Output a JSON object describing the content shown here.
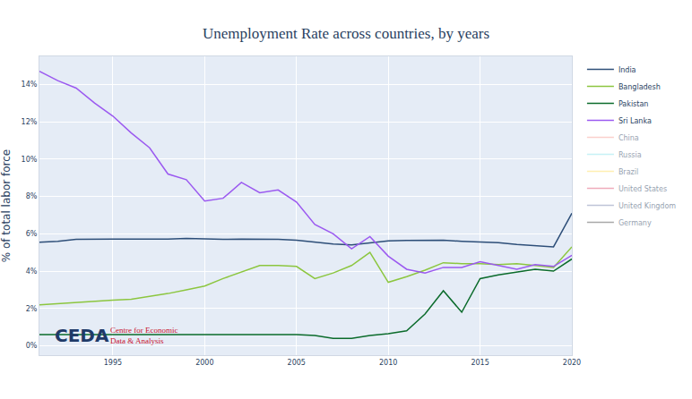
{
  "chart_data": {
    "type": "line",
    "title": "Unemployment Rate across countries, by years",
    "y_label": "% of total labor force",
    "x": [
      1991,
      1992,
      1993,
      1994,
      1995,
      1996,
      1997,
      1998,
      1999,
      2000,
      2001,
      2002,
      2003,
      2004,
      2005,
      2006,
      2007,
      2008,
      2009,
      2010,
      2011,
      2012,
      2013,
      2014,
      2015,
      2016,
      2017,
      2018,
      2019,
      2020
    ],
    "series": [
      {
        "name": "India",
        "color": "#2d4e78",
        "values": [
          5.55,
          5.6,
          5.7,
          5.72,
          5.72,
          5.72,
          5.72,
          5.71,
          5.75,
          5.73,
          5.7,
          5.72,
          5.72,
          5.7,
          5.65,
          5.55,
          5.45,
          5.4,
          5.5,
          5.62,
          5.64,
          5.64,
          5.65,
          5.6,
          5.57,
          5.52,
          5.43,
          5.38,
          5.3,
          7.1
        ]
      },
      {
        "name": "Bangladesh",
        "color": "#8cc63f",
        "values": [
          2.2,
          2.27,
          2.33,
          2.4,
          2.45,
          2.5,
          2.65,
          2.8,
          3.0,
          3.2,
          3.6,
          3.95,
          4.3,
          4.3,
          4.25,
          3.6,
          3.9,
          4.3,
          5.0,
          3.4,
          3.7,
          4.05,
          4.45,
          4.4,
          4.4,
          4.35,
          4.4,
          4.3,
          4.2,
          5.3
        ]
      },
      {
        "name": "Pakistan",
        "color": "#0b6b2b",
        "values": [
          0.6,
          0.6,
          0.6,
          0.6,
          0.6,
          0.6,
          0.6,
          0.6,
          0.6,
          0.6,
          0.6,
          0.6,
          0.6,
          0.6,
          0.6,
          0.55,
          0.4,
          0.4,
          0.55,
          0.65,
          0.8,
          1.7,
          2.95,
          1.8,
          3.6,
          3.8,
          3.95,
          4.1,
          4.0,
          4.65
        ]
      },
      {
        "name": "Sri Lanka",
        "color": "#9b59f0",
        "values": [
          14.7,
          14.2,
          13.8,
          13.0,
          12.3,
          11.4,
          10.6,
          9.2,
          8.9,
          7.75,
          7.9,
          8.75,
          8.2,
          8.35,
          7.7,
          6.5,
          6.0,
          5.2,
          5.85,
          4.8,
          4.1,
          3.9,
          4.2,
          4.2,
          4.5,
          4.3,
          4.1,
          4.35,
          4.25,
          4.85
        ]
      },
      {
        "name": "China",
        "color": "#f8a39a",
        "values": [
          null,
          null,
          null,
          null,
          null,
          null,
          null,
          null,
          null,
          null,
          null,
          null,
          null,
          null,
          null,
          null,
          null,
          null,
          null,
          null,
          null,
          null,
          null,
          null,
          null,
          null,
          null,
          null,
          null,
          null
        ]
      },
      {
        "name": "Russia",
        "color": "#8ee4ee",
        "values": [
          null,
          null,
          null,
          null,
          null,
          null,
          null,
          null,
          null,
          null,
          null,
          null,
          null,
          null,
          null,
          null,
          null,
          null,
          null,
          null,
          null,
          null,
          null,
          null,
          null,
          null,
          null,
          null,
          null,
          null
        ]
      },
      {
        "name": "Brazil",
        "color": "#ffe066",
        "values": [
          null,
          null,
          null,
          null,
          null,
          null,
          null,
          null,
          null,
          null,
          null,
          null,
          null,
          null,
          null,
          null,
          null,
          null,
          null,
          null,
          null,
          null,
          null,
          null,
          null,
          null,
          null,
          null,
          null,
          null
        ]
      },
      {
        "name": "United States",
        "color": "#e05a7a",
        "values": [
          null,
          null,
          null,
          null,
          null,
          null,
          null,
          null,
          null,
          null,
          null,
          null,
          null,
          null,
          null,
          null,
          null,
          null,
          null,
          null,
          null,
          null,
          null,
          null,
          null,
          null,
          null,
          null,
          null,
          null
        ]
      },
      {
        "name": "United Kingdom",
        "color": "#7f8bb0",
        "values": [
          null,
          null,
          null,
          null,
          null,
          null,
          null,
          null,
          null,
          null,
          null,
          null,
          null,
          null,
          null,
          null,
          null,
          null,
          null,
          null,
          null,
          null,
          null,
          null,
          null,
          null,
          null,
          null,
          null,
          null
        ]
      },
      {
        "name": "Germany",
        "color": "#555555",
        "values": [
          null,
          null,
          null,
          null,
          null,
          null,
          null,
          null,
          null,
          null,
          null,
          null,
          null,
          null,
          null,
          null,
          null,
          null,
          null,
          null,
          null,
          null,
          null,
          null,
          null,
          null,
          null,
          null,
          null,
          null
        ]
      }
    ],
    "xlim": [
      1991,
      2020
    ],
    "xticks": [
      1995,
      2000,
      2005,
      2010,
      2015,
      2020
    ],
    "ylim": [
      -0.5,
      15.5
    ],
    "yticks": [
      {
        "value": 0,
        "label": "0%"
      },
      {
        "value": 2,
        "label": "2%"
      },
      {
        "value": 4,
        "label": "4%"
      },
      {
        "value": 6,
        "label": "6%"
      },
      {
        "value": 8,
        "label": "8%"
      },
      {
        "value": 10,
        "label": "10%"
      },
      {
        "value": 12,
        "label": "12%"
      },
      {
        "value": 14,
        "label": "14%"
      }
    ],
    "grid": true,
    "legend": "right",
    "annotations": [
      "CEDA",
      "Centre for Economic",
      "Data & Analysis"
    ]
  }
}
